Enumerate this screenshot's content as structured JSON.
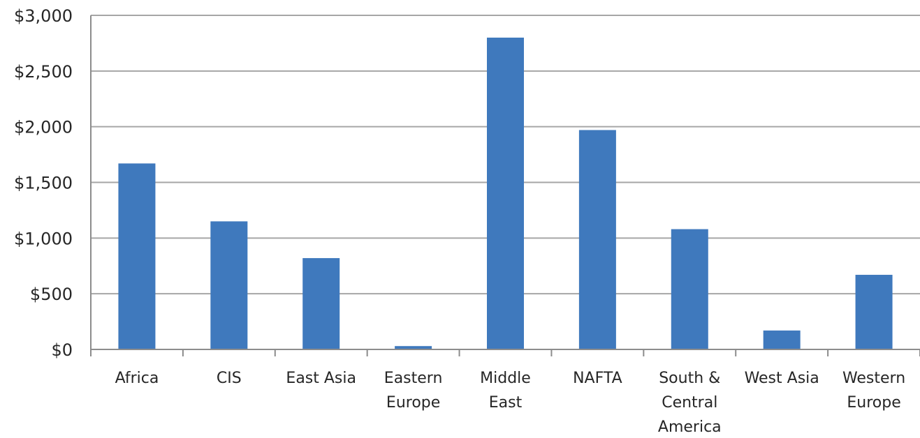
{
  "chart_data": {
    "type": "bar",
    "categories": [
      [
        "Africa"
      ],
      [
        "CIS"
      ],
      [
        "East Asia"
      ],
      [
        "Eastern",
        "Europe"
      ],
      [
        "Middle",
        "East"
      ],
      [
        "NAFTA"
      ],
      [
        "South &",
        "Central",
        "America"
      ],
      [
        "West Asia"
      ],
      [
        "Western",
        "Europe"
      ]
    ],
    "values": [
      1670,
      1150,
      820,
      30,
      2800,
      1970,
      1080,
      170,
      670
    ],
    "ylim": [
      0,
      3000
    ],
    "yticks": [
      "$0",
      "$500",
      "$1,000",
      "$1,500",
      "$2,000",
      "$2,500",
      "$3,000"
    ],
    "ytick_values": [
      0,
      500,
      1000,
      1500,
      2000,
      2500,
      3000
    ],
    "grid": true,
    "title": "",
    "xlabel": "",
    "ylabel": "",
    "legend": "none",
    "colors": {
      "bar": "#3f79bd",
      "grid": "#a6a6a6",
      "axis": "#8c8c8c"
    }
  }
}
